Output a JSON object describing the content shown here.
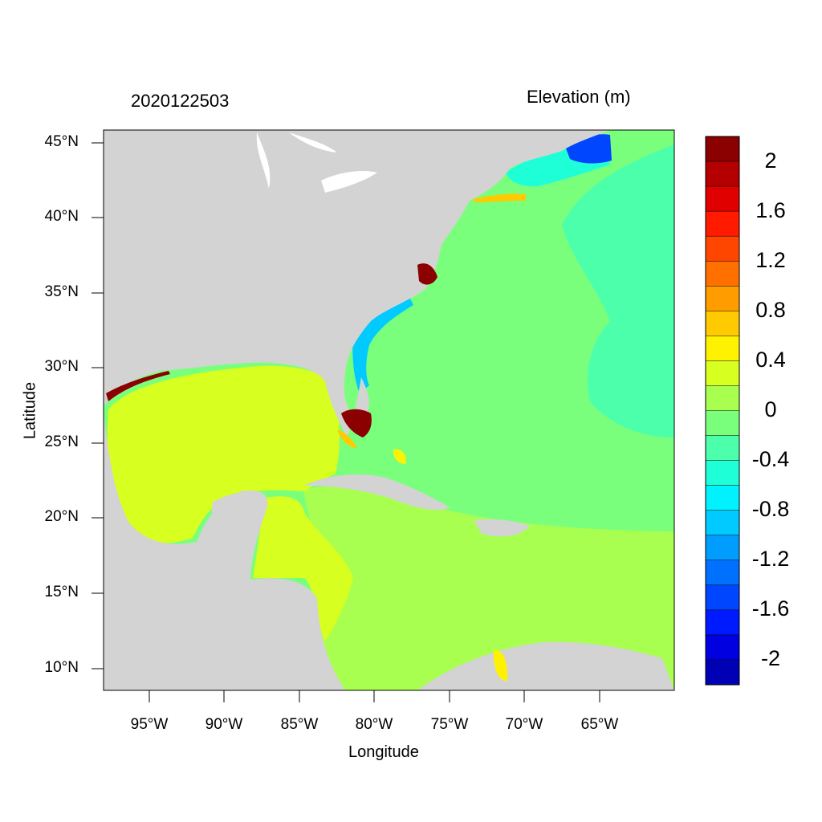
{
  "title_left": "2020122503",
  "title_right": "Elevation (m)",
  "xlabel": "Longitude",
  "ylabel": "Latitude",
  "lat_ticks": [
    "45°N",
    "40°N",
    "35°N",
    "30°N",
    "25°N",
    "20°N",
    "15°N",
    "10°N"
  ],
  "lon_ticks": [
    "95°W",
    "90°W",
    "85°W",
    "80°W",
    "75°W",
    "70°W",
    "65°W"
  ],
  "colorbar": {
    "labels": [
      "2",
      "1.6",
      "1.2",
      "0.8",
      "0.4",
      "0",
      "-0.4",
      "-0.8",
      "-1.2",
      "-1.6",
      "-2"
    ],
    "colors": [
      "#8b0000",
      "#b40000",
      "#e10000",
      "#ff1a00",
      "#ff4600",
      "#ff7000",
      "#ff9d00",
      "#ffca00",
      "#fff200",
      "#d7ff1f",
      "#a8ff4f",
      "#7aff7d",
      "#4cffab",
      "#1fffd7",
      "#00f2ff",
      "#00caff",
      "#009dff",
      "#0070ff",
      "#0046ff",
      "#001aff",
      "#0000e1",
      "#0000b4"
    ]
  },
  "colors": {
    "land": "#d3d3d3",
    "atlantic": "#7aff7d",
    "atlantic_east": "#4cffab",
    "gulf": "#d7ff1f",
    "caribbean": "#a8ff4f",
    "coastal_blue": "#00caff",
    "gulf_of_maine": "#0046ff",
    "surge_high": "#8b0000"
  }
}
